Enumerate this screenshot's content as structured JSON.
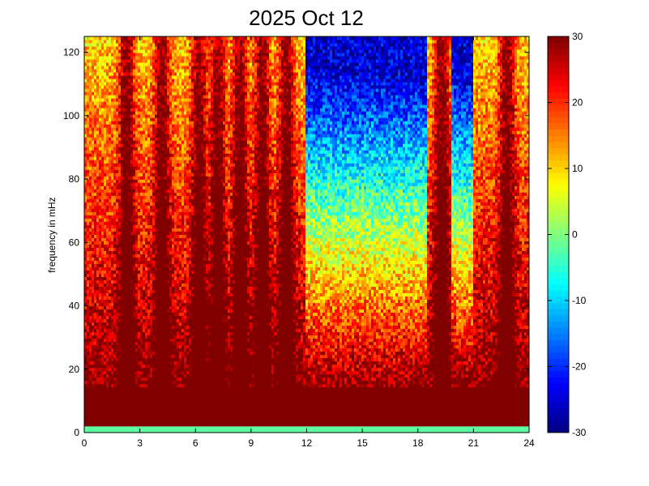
{
  "chart_data": {
    "type": "heatmap",
    "title": "2025 Oct 12",
    "xlabel": "",
    "ylabel": "frequency in mHz",
    "xlim": [
      0,
      24
    ],
    "ylim": [
      0,
      125
    ],
    "xticks": [
      0,
      3,
      6,
      9,
      12,
      15,
      18,
      21,
      24
    ],
    "yticks": [
      0,
      20,
      40,
      60,
      80,
      100,
      120
    ],
    "colormap": "jet",
    "colorbar": {
      "range": [
        -30,
        30
      ],
      "ticks": [
        -30,
        -20,
        -10,
        0,
        10,
        20,
        30
      ]
    },
    "burst_centers_hours": [
      2.3,
      4.2,
      6.2,
      7.2,
      8.4,
      9.6,
      10.9,
      19.3,
      22.8
    ],
    "quiet_intervals_hours": [
      [
        12,
        18.5
      ],
      [
        19.8,
        21
      ]
    ],
    "low_frequency_level": 30,
    "high_frequency_quiet_level": -25
  }
}
